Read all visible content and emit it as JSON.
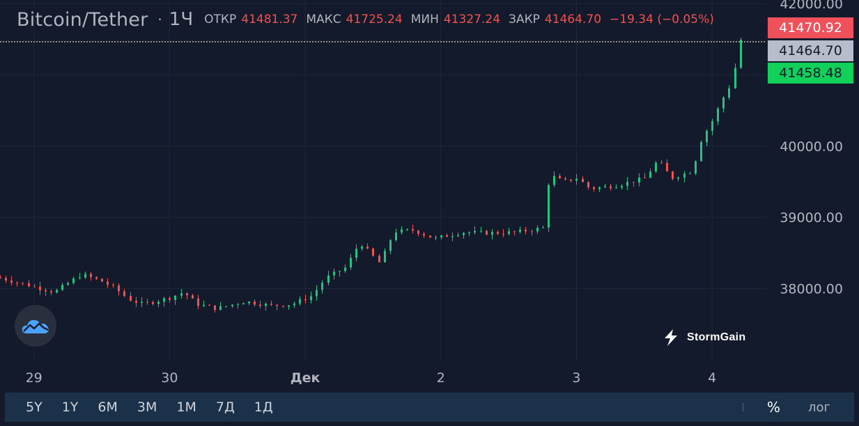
{
  "legend": {
    "symbol": "Bitcoin/Tether",
    "interval": "1Ч",
    "open_label": "ОТКР",
    "open_value": "41481.37",
    "high_label": "МАКС",
    "high_value": "41725.24",
    "low_label": "МИН",
    "low_value": "41327.24",
    "close_label": "ЗАКР",
    "close_value": "41464.70",
    "change_value": "−19.34 (−0.05%)"
  },
  "price_tags": {
    "high": "41470.92",
    "last": "41464.70",
    "low": "41458.48"
  },
  "brand": {
    "name": "StormGain"
  },
  "bottom_bar": {
    "ranges": [
      "5Y",
      "1Y",
      "6M",
      "3M",
      "1M",
      "7Д",
      "1Д"
    ],
    "percent_label": "%",
    "log_label": "лог"
  },
  "colors": {
    "background": "#131a2c",
    "up": "#26c281",
    "down": "#ef5350",
    "grid": "#1f2739",
    "axis_text": "#b2b5be"
  },
  "icons": {
    "logo": "cloud-chart-icon",
    "brand": "lightning-bolt-icon"
  },
  "chart_data": {
    "type": "candlestick",
    "title": "Bitcoin/Tether",
    "interval": "1Ч",
    "xlabel": "",
    "ylabel": "",
    "y_ticks": [
      38000,
      39000,
      40000,
      41000,
      42000
    ],
    "y_tick_labels": [
      "38000.00",
      "39000.00",
      "40000.00",
      "41000.00",
      "42000.00"
    ],
    "x_tick_labels": [
      "29",
      "30",
      "Дек",
      "2",
      "3",
      "4"
    ],
    "x_tick_positions": [
      0,
      1,
      2,
      3,
      4,
      5
    ],
    "xlim": [
      -0.25,
      5.4
    ],
    "ylim": [
      36970,
      42050
    ],
    "last_price": 41464.7,
    "grid": true,
    "anchors": [
      [
        -0.25,
        38150
      ],
      [
        -0.05,
        38050
      ],
      [
        0.15,
        37950
      ],
      [
        0.35,
        38200
      ],
      [
        0.5,
        38100
      ],
      [
        0.6,
        38000
      ],
      [
        0.7,
        37850
      ],
      [
        0.8,
        37780
      ],
      [
        1.0,
        37870
      ],
      [
        1.1,
        37950
      ],
      [
        1.2,
        37780
      ],
      [
        1.35,
        37720
      ],
      [
        1.55,
        37820
      ],
      [
        1.75,
        37760
      ],
      [
        1.9,
        37780
      ],
      [
        2.05,
        37900
      ],
      [
        2.15,
        38150
      ],
      [
        2.3,
        38300
      ],
      [
        2.4,
        38650
      ],
      [
        2.45,
        38550
      ],
      [
        2.55,
        38350
      ],
      [
        2.65,
        38800
      ],
      [
        2.8,
        38820
      ],
      [
        2.95,
        38700
      ],
      [
        3.15,
        38790
      ],
      [
        3.35,
        38780
      ],
      [
        3.55,
        38790
      ],
      [
        3.75,
        38850
      ],
      [
        3.8,
        39600
      ],
      [
        3.9,
        39500
      ],
      [
        4.0,
        39550
      ],
      [
        4.1,
        39400
      ],
      [
        4.3,
        39450
      ],
      [
        4.5,
        39550
      ],
      [
        4.6,
        39800
      ],
      [
        4.7,
        39550
      ],
      [
        4.85,
        39650
      ],
      [
        4.92,
        40100
      ],
      [
        5.0,
        40350
      ],
      [
        5.1,
        40750
      ],
      [
        5.15,
        40900
      ],
      [
        5.2,
        41500
      ],
      [
        5.24,
        41465
      ]
    ]
  }
}
